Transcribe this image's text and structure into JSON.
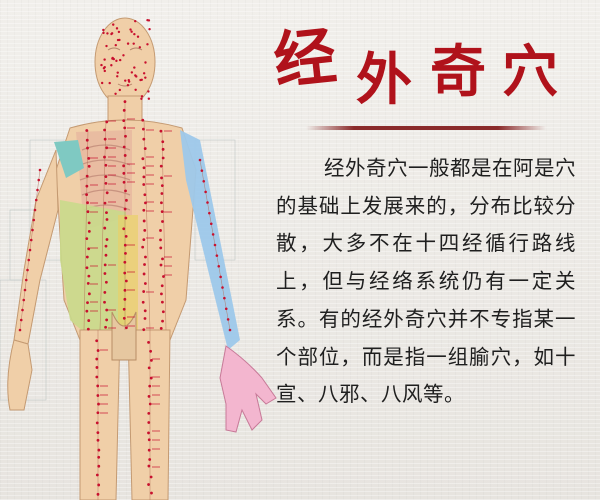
{
  "title": {
    "chars": [
      "经",
      "外",
      "奇",
      "穴"
    ],
    "color": "#b0121b"
  },
  "body": {
    "paragraph": "经外奇穴一般都是在阿是穴的基础上发展来的，分布比较分散，大多不在十四经循行路线上，但与经络系统仍有一定关系。有的经外奇穴并不专指某一个部位，而是指一组腧穴，如十宣、八邪、八风等。"
  },
  "figure": {
    "image_name": "acupuncture-body-chart",
    "colors": {
      "skin": "#f0cfa8",
      "chest_ribs": "#e7b9a0",
      "abdomen": "#c9d98b",
      "shoulder": "#7fc9c2",
      "arm_channel": "#9dc8ea",
      "hand": "#f3b6cf",
      "point_red": "#c8102e"
    }
  }
}
